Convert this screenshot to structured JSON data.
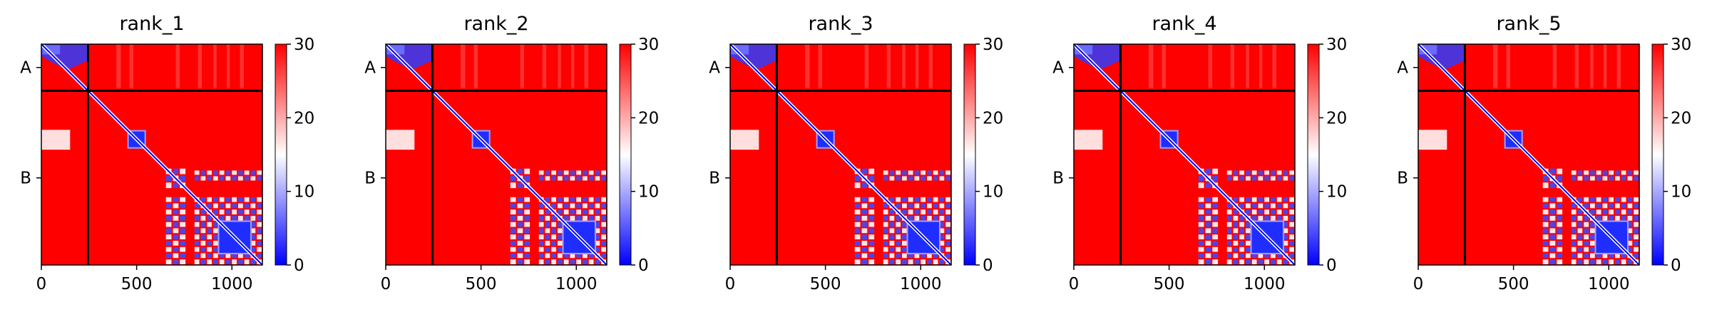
{
  "chart_data": [
    {
      "type": "heatmap",
      "title": "rank_1",
      "xlim": [
        0,
        1160
      ],
      "xticks": [
        0,
        500,
        1000
      ],
      "tick_labels": [
        "0",
        "500",
        "1000"
      ],
      "ytick_labels": [
        "A",
        "B"
      ],
      "chains": [
        {
          "name": "A",
          "start": 0,
          "end": 245
        },
        {
          "name": "B",
          "start": 245,
          "end": 1160
        }
      ],
      "colorbar": {
        "min": 0,
        "max": 30,
        "ticks": [
          0,
          10,
          20,
          30
        ],
        "tick_labels": [
          "0",
          "10",
          "20",
          "30"
        ],
        "colormap": [
          "#0000ff",
          "#ffffff",
          "#ff0000"
        ]
      }
    },
    {
      "type": "heatmap",
      "title": "rank_2",
      "xlim": [
        0,
        1160
      ],
      "xticks": [
        0,
        500,
        1000
      ],
      "tick_labels": [
        "0",
        "500",
        "1000"
      ],
      "ytick_labels": [
        "A",
        "B"
      ],
      "chains": [
        {
          "name": "A",
          "start": 0,
          "end": 245
        },
        {
          "name": "B",
          "start": 245,
          "end": 1160
        }
      ],
      "colorbar": {
        "min": 0,
        "max": 30,
        "ticks": [
          0,
          10,
          20,
          30
        ],
        "tick_labels": [
          "0",
          "10",
          "20",
          "30"
        ],
        "colormap": [
          "#0000ff",
          "#ffffff",
          "#ff0000"
        ]
      }
    },
    {
      "type": "heatmap",
      "title": "rank_3",
      "xlim": [
        0,
        1160
      ],
      "xticks": [
        0,
        500,
        1000
      ],
      "tick_labels": [
        "0",
        "500",
        "1000"
      ],
      "ytick_labels": [
        "A",
        "B"
      ],
      "chains": [
        {
          "name": "A",
          "start": 0,
          "end": 245
        },
        {
          "name": "B",
          "start": 245,
          "end": 1160
        }
      ],
      "colorbar": {
        "min": 0,
        "max": 30,
        "ticks": [
          0,
          10,
          20,
          30
        ],
        "tick_labels": [
          "0",
          "10",
          "20",
          "30"
        ],
        "colormap": [
          "#0000ff",
          "#ffffff",
          "#ff0000"
        ]
      }
    },
    {
      "type": "heatmap",
      "title": "rank_4",
      "xlim": [
        0,
        1160
      ],
      "xticks": [
        0,
        500,
        1000
      ],
      "tick_labels": [
        "0",
        "500",
        "1000"
      ],
      "ytick_labels": [
        "A",
        "B"
      ],
      "chains": [
        {
          "name": "A",
          "start": 0,
          "end": 245
        },
        {
          "name": "B",
          "start": 245,
          "end": 1160
        }
      ],
      "colorbar": {
        "min": 0,
        "max": 30,
        "ticks": [
          0,
          10,
          20,
          30
        ],
        "tick_labels": [
          "0",
          "10",
          "20",
          "30"
        ],
        "colormap": [
          "#0000ff",
          "#ffffff",
          "#ff0000"
        ]
      }
    },
    {
      "type": "heatmap",
      "title": "rank_5",
      "xlim": [
        0,
        1160
      ],
      "xticks": [
        0,
        500,
        1000
      ],
      "tick_labels": [
        "0",
        "500",
        "1000"
      ],
      "ytick_labels": [
        "A",
        "B"
      ],
      "chains": [
        {
          "name": "A",
          "start": 0,
          "end": 245
        },
        {
          "name": "B",
          "start": 245,
          "end": 1160
        }
      ],
      "colorbar": {
        "min": 0,
        "max": 30,
        "ticks": [
          0,
          10,
          20,
          30
        ],
        "tick_labels": [
          "0",
          "10",
          "20",
          "30"
        ],
        "colormap": [
          "#0000ff",
          "#ffffff",
          "#ff0000"
        ]
      }
    }
  ],
  "low_error_regions": [
    {
      "x": [
        0,
        245
      ],
      "y": [
        0,
        245
      ],
      "shape": "triangle"
    },
    {
      "x": [
        455,
        545
      ],
      "y": [
        455,
        545
      ],
      "shape": "block"
    },
    {
      "x": [
        650,
        760
      ],
      "y": [
        650,
        760
      ],
      "shape": "lattice"
    },
    {
      "x": [
        800,
        1160
      ],
      "y": [
        660,
        720
      ],
      "shape": "lattice"
    },
    {
      "x": [
        650,
        760
      ],
      "y": [
        800,
        1160
      ],
      "shape": "lattice"
    },
    {
      "x": [
        800,
        1160
      ],
      "y": [
        800,
        1160
      ],
      "shape": "lattice"
    },
    {
      "x": [
        930,
        1100
      ],
      "y": [
        930,
        1100
      ],
      "shape": "block"
    }
  ]
}
